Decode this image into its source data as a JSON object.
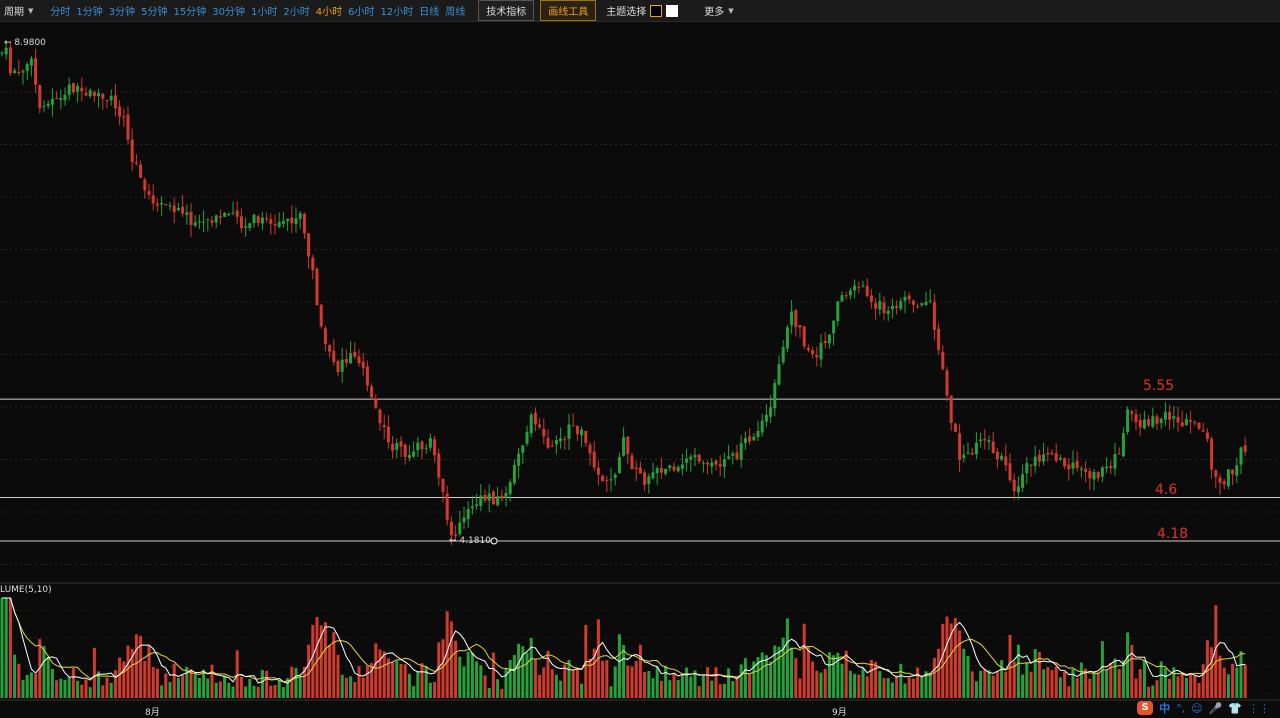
{
  "toolbar": {
    "period_label": "周期",
    "periods": [
      "分时",
      "1分钟",
      "3分钟",
      "5分钟",
      "15分钟",
      "30分钟",
      "1小时",
      "2小时",
      "4小时",
      "6小时",
      "12小时",
      "日线",
      "周线"
    ],
    "active_period": "4小时",
    "indicator_button": "技术指标",
    "drawing_button": "画线工具",
    "theme_label": "主题选择",
    "more_label": "更多"
  },
  "chart_data": {
    "type": "candlestick",
    "high_marker": "8.9800",
    "low_marker": "4.1810",
    "horizontal_lines": [
      {
        "price": 5.55,
        "label": "5.55"
      },
      {
        "price": 4.6,
        "label": "4.6"
      },
      {
        "price": 4.18,
        "label": "4.18"
      }
    ],
    "price_path": [
      [
        0,
        8.8
      ],
      [
        4,
        8.98
      ],
      [
        10,
        8.75
      ],
      [
        20,
        8.7
      ],
      [
        30,
        8.85
      ],
      [
        40,
        8.4
      ],
      [
        55,
        8.42
      ],
      [
        70,
        8.55
      ],
      [
        90,
        8.5
      ],
      [
        110,
        8.45
      ],
      [
        125,
        8.2
      ],
      [
        132,
        7.85
      ],
      [
        140,
        7.7
      ],
      [
        150,
        7.45
      ],
      [
        165,
        7.45
      ],
      [
        180,
        7.35
      ],
      [
        195,
        7.25
      ],
      [
        210,
        7.3
      ],
      [
        225,
        7.35
      ],
      [
        240,
        7.25
      ],
      [
        255,
        7.28
      ],
      [
        270,
        7.25
      ],
      [
        285,
        7.28
      ],
      [
        300,
        7.32
      ],
      [
        310,
        6.9
      ],
      [
        318,
        6.45
      ],
      [
        325,
        6.15
      ],
      [
        335,
        5.85
      ],
      [
        350,
        5.95
      ],
      [
        365,
        5.8
      ],
      [
        378,
        5.4
      ],
      [
        392,
        5.1
      ],
      [
        405,
        5.05
      ],
      [
        420,
        5.1
      ],
      [
        432,
        5.15
      ],
      [
        442,
        4.65
      ],
      [
        450,
        4.22
      ],
      [
        458,
        4.3
      ],
      [
        470,
        4.55
      ],
      [
        485,
        4.6
      ],
      [
        500,
        4.55
      ],
      [
        512,
        4.8
      ],
      [
        522,
        5.05
      ],
      [
        532,
        5.45
      ],
      [
        542,
        5.2
      ],
      [
        552,
        5.05
      ],
      [
        562,
        5.2
      ],
      [
        575,
        5.3
      ],
      [
        585,
        5.15
      ],
      [
        600,
        4.72
      ],
      [
        612,
        4.75
      ],
      [
        625,
        5.18
      ],
      [
        632,
        4.9
      ],
      [
        642,
        4.75
      ],
      [
        660,
        4.85
      ],
      [
        680,
        4.95
      ],
      [
        700,
        5.0
      ],
      [
        720,
        4.9
      ],
      [
        740,
        5.05
      ],
      [
        755,
        5.25
      ],
      [
        770,
        5.5
      ],
      [
        780,
        5.95
      ],
      [
        790,
        6.4
      ],
      [
        800,
        6.2
      ],
      [
        812,
        5.95
      ],
      [
        825,
        6.1
      ],
      [
        835,
        6.4
      ],
      [
        848,
        6.6
      ],
      [
        860,
        6.65
      ],
      [
        872,
        6.5
      ],
      [
        885,
        6.4
      ],
      [
        900,
        6.5
      ],
      [
        915,
        6.45
      ],
      [
        930,
        6.5
      ],
      [
        942,
        5.85
      ],
      [
        950,
        5.4
      ],
      [
        960,
        5.0
      ],
      [
        972,
        5.05
      ],
      [
        985,
        5.15
      ],
      [
        1000,
        5.0
      ],
      [
        1015,
        4.7
      ],
      [
        1030,
        4.95
      ],
      [
        1045,
        5.0
      ],
      [
        1060,
        4.95
      ],
      [
        1075,
        4.9
      ],
      [
        1090,
        4.8
      ],
      [
        1105,
        4.85
      ],
      [
        1118,
        5.0
      ],
      [
        1128,
        5.45
      ],
      [
        1140,
        5.3
      ],
      [
        1155,
        5.35
      ],
      [
        1165,
        5.45
      ],
      [
        1178,
        5.3
      ],
      [
        1192,
        5.4
      ],
      [
        1205,
        5.25
      ],
      [
        1212,
        4.85
      ],
      [
        1222,
        4.75
      ],
      [
        1232,
        4.85
      ],
      [
        1240,
        5.05
      ],
      [
        1248,
        5.0
      ]
    ],
    "volume_indicator_label": "LUME(5,10)",
    "x_axis_labels": [
      "8月",
      "9月"
    ]
  },
  "ime": {
    "logo": "S",
    "lang": "中",
    "punct": "°,",
    "emoji": "☺",
    "mic": "🎤",
    "skin": "👕",
    "grid": "⋮⋮"
  },
  "colors": {
    "up": "#27a13b",
    "down": "#d13a2d",
    "background": "#0b0b0b",
    "line_label": "#e0322a",
    "ma5": "#ffffff",
    "ma10": "#e6d33c"
  }
}
